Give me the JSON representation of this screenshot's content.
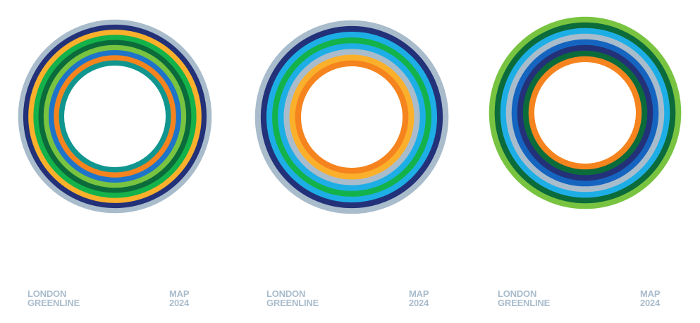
{
  "panels": [
    {
      "left_label": [
        "LONDON",
        "GREENLINE"
      ],
      "right_label": [
        "MAP",
        "2024"
      ],
      "rings": [
        "#a9bccc",
        "#233179",
        "#fbb02b",
        "#14b24a",
        "#0c6b3a",
        "#78c441",
        "#1e74c8",
        "#f5841f",
        "#11968f"
      ]
    },
    {
      "left_label": [
        "LONDON",
        "GREENLINE"
      ],
      "right_label": [
        "MAP",
        "2024"
      ],
      "rings": [
        "#a9bccc",
        "#233179",
        "#1daee6",
        "#14b24a",
        "#1daee6",
        "#a9bccc",
        "#fbb02b",
        "#f5841f"
      ]
    },
    {
      "left_label": [
        "LONDON",
        "GREENLINE"
      ],
      "right_label": [
        "MAP",
        "2024"
      ],
      "rings": [
        "#78c441",
        "#0c6b3a",
        "#1daee6",
        "#a9bccc",
        "#1565c0",
        "#233179",
        "#0c6b3a",
        "#f5841f"
      ]
    }
  ]
}
